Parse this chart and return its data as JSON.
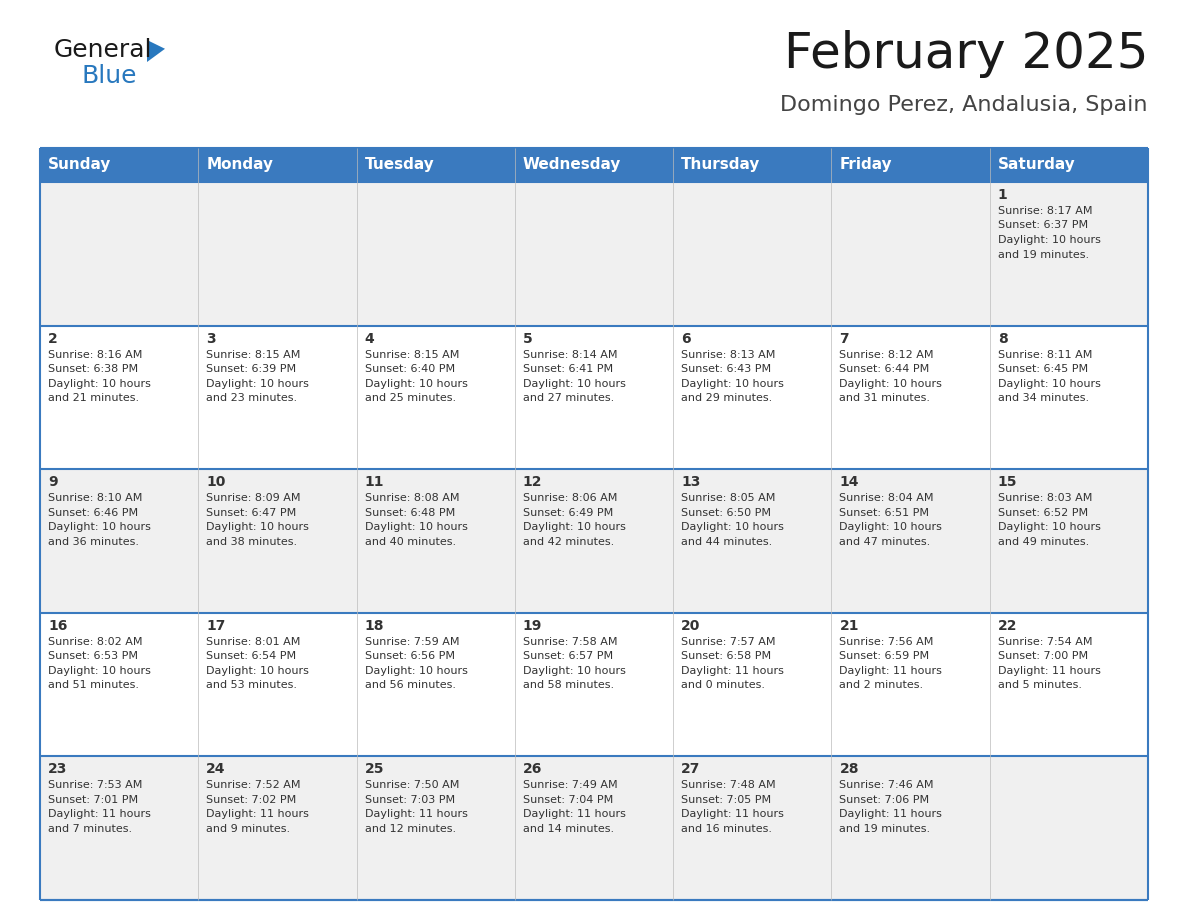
{
  "title": "February 2025",
  "subtitle": "Domingo Perez, Andalusia, Spain",
  "header_bg": "#3a7abf",
  "header_text": "#ffffff",
  "day_names": [
    "Sunday",
    "Monday",
    "Tuesday",
    "Wednesday",
    "Thursday",
    "Friday",
    "Saturday"
  ],
  "row_bg_odd": "#f0f0f0",
  "row_bg_even": "#ffffff",
  "border_color": "#3a7abf",
  "text_color": "#333333",
  "day_num_color": "#333333",
  "title_fontsize": 36,
  "subtitle_fontsize": 16,
  "header_fontsize": 11,
  "day_fontsize": 10,
  "cell_fontsize": 8,
  "calendar_data": [
    [
      {
        "day": null,
        "sunrise": null,
        "sunset": null,
        "daylight_h": null,
        "daylight_m": null
      },
      {
        "day": null,
        "sunrise": null,
        "sunset": null,
        "daylight_h": null,
        "daylight_m": null
      },
      {
        "day": null,
        "sunrise": null,
        "sunset": null,
        "daylight_h": null,
        "daylight_m": null
      },
      {
        "day": null,
        "sunrise": null,
        "sunset": null,
        "daylight_h": null,
        "daylight_m": null
      },
      {
        "day": null,
        "sunrise": null,
        "sunset": null,
        "daylight_h": null,
        "daylight_m": null
      },
      {
        "day": null,
        "sunrise": null,
        "sunset": null,
        "daylight_h": null,
        "daylight_m": null
      },
      {
        "day": 1,
        "sunrise": "8:17 AM",
        "sunset": "6:37 PM",
        "daylight_h": "10 hours",
        "daylight_m": "and 19 minutes."
      }
    ],
    [
      {
        "day": 2,
        "sunrise": "8:16 AM",
        "sunset": "6:38 PM",
        "daylight_h": "10 hours",
        "daylight_m": "and 21 minutes."
      },
      {
        "day": 3,
        "sunrise": "8:15 AM",
        "sunset": "6:39 PM",
        "daylight_h": "10 hours",
        "daylight_m": "and 23 minutes."
      },
      {
        "day": 4,
        "sunrise": "8:15 AM",
        "sunset": "6:40 PM",
        "daylight_h": "10 hours",
        "daylight_m": "and 25 minutes."
      },
      {
        "day": 5,
        "sunrise": "8:14 AM",
        "sunset": "6:41 PM",
        "daylight_h": "10 hours",
        "daylight_m": "and 27 minutes."
      },
      {
        "day": 6,
        "sunrise": "8:13 AM",
        "sunset": "6:43 PM",
        "daylight_h": "10 hours",
        "daylight_m": "and 29 minutes."
      },
      {
        "day": 7,
        "sunrise": "8:12 AM",
        "sunset": "6:44 PM",
        "daylight_h": "10 hours",
        "daylight_m": "and 31 minutes."
      },
      {
        "day": 8,
        "sunrise": "8:11 AM",
        "sunset": "6:45 PM",
        "daylight_h": "10 hours",
        "daylight_m": "and 34 minutes."
      }
    ],
    [
      {
        "day": 9,
        "sunrise": "8:10 AM",
        "sunset": "6:46 PM",
        "daylight_h": "10 hours",
        "daylight_m": "and 36 minutes."
      },
      {
        "day": 10,
        "sunrise": "8:09 AM",
        "sunset": "6:47 PM",
        "daylight_h": "10 hours",
        "daylight_m": "and 38 minutes."
      },
      {
        "day": 11,
        "sunrise": "8:08 AM",
        "sunset": "6:48 PM",
        "daylight_h": "10 hours",
        "daylight_m": "and 40 minutes."
      },
      {
        "day": 12,
        "sunrise": "8:06 AM",
        "sunset": "6:49 PM",
        "daylight_h": "10 hours",
        "daylight_m": "and 42 minutes."
      },
      {
        "day": 13,
        "sunrise": "8:05 AM",
        "sunset": "6:50 PM",
        "daylight_h": "10 hours",
        "daylight_m": "and 44 minutes."
      },
      {
        "day": 14,
        "sunrise": "8:04 AM",
        "sunset": "6:51 PM",
        "daylight_h": "10 hours",
        "daylight_m": "and 47 minutes."
      },
      {
        "day": 15,
        "sunrise": "8:03 AM",
        "sunset": "6:52 PM",
        "daylight_h": "10 hours",
        "daylight_m": "and 49 minutes."
      }
    ],
    [
      {
        "day": 16,
        "sunrise": "8:02 AM",
        "sunset": "6:53 PM",
        "daylight_h": "10 hours",
        "daylight_m": "and 51 minutes."
      },
      {
        "day": 17,
        "sunrise": "8:01 AM",
        "sunset": "6:54 PM",
        "daylight_h": "10 hours",
        "daylight_m": "and 53 minutes."
      },
      {
        "day": 18,
        "sunrise": "7:59 AM",
        "sunset": "6:56 PM",
        "daylight_h": "10 hours",
        "daylight_m": "and 56 minutes."
      },
      {
        "day": 19,
        "sunrise": "7:58 AM",
        "sunset": "6:57 PM",
        "daylight_h": "10 hours",
        "daylight_m": "and 58 minutes."
      },
      {
        "day": 20,
        "sunrise": "7:57 AM",
        "sunset": "6:58 PM",
        "daylight_h": "11 hours",
        "daylight_m": "and 0 minutes."
      },
      {
        "day": 21,
        "sunrise": "7:56 AM",
        "sunset": "6:59 PM",
        "daylight_h": "11 hours",
        "daylight_m": "and 2 minutes."
      },
      {
        "day": 22,
        "sunrise": "7:54 AM",
        "sunset": "7:00 PM",
        "daylight_h": "11 hours",
        "daylight_m": "and 5 minutes."
      }
    ],
    [
      {
        "day": 23,
        "sunrise": "7:53 AM",
        "sunset": "7:01 PM",
        "daylight_h": "11 hours",
        "daylight_m": "and 7 minutes."
      },
      {
        "day": 24,
        "sunrise": "7:52 AM",
        "sunset": "7:02 PM",
        "daylight_h": "11 hours",
        "daylight_m": "and 9 minutes."
      },
      {
        "day": 25,
        "sunrise": "7:50 AM",
        "sunset": "7:03 PM",
        "daylight_h": "11 hours",
        "daylight_m": "and 12 minutes."
      },
      {
        "day": 26,
        "sunrise": "7:49 AM",
        "sunset": "7:04 PM",
        "daylight_h": "11 hours",
        "daylight_m": "and 14 minutes."
      },
      {
        "day": 27,
        "sunrise": "7:48 AM",
        "sunset": "7:05 PM",
        "daylight_h": "11 hours",
        "daylight_m": "and 16 minutes."
      },
      {
        "day": 28,
        "sunrise": "7:46 AM",
        "sunset": "7:06 PM",
        "daylight_h": "11 hours",
        "daylight_m": "and 19 minutes."
      },
      {
        "day": null,
        "sunrise": null,
        "sunset": null,
        "daylight_h": null,
        "daylight_m": null
      }
    ]
  ]
}
